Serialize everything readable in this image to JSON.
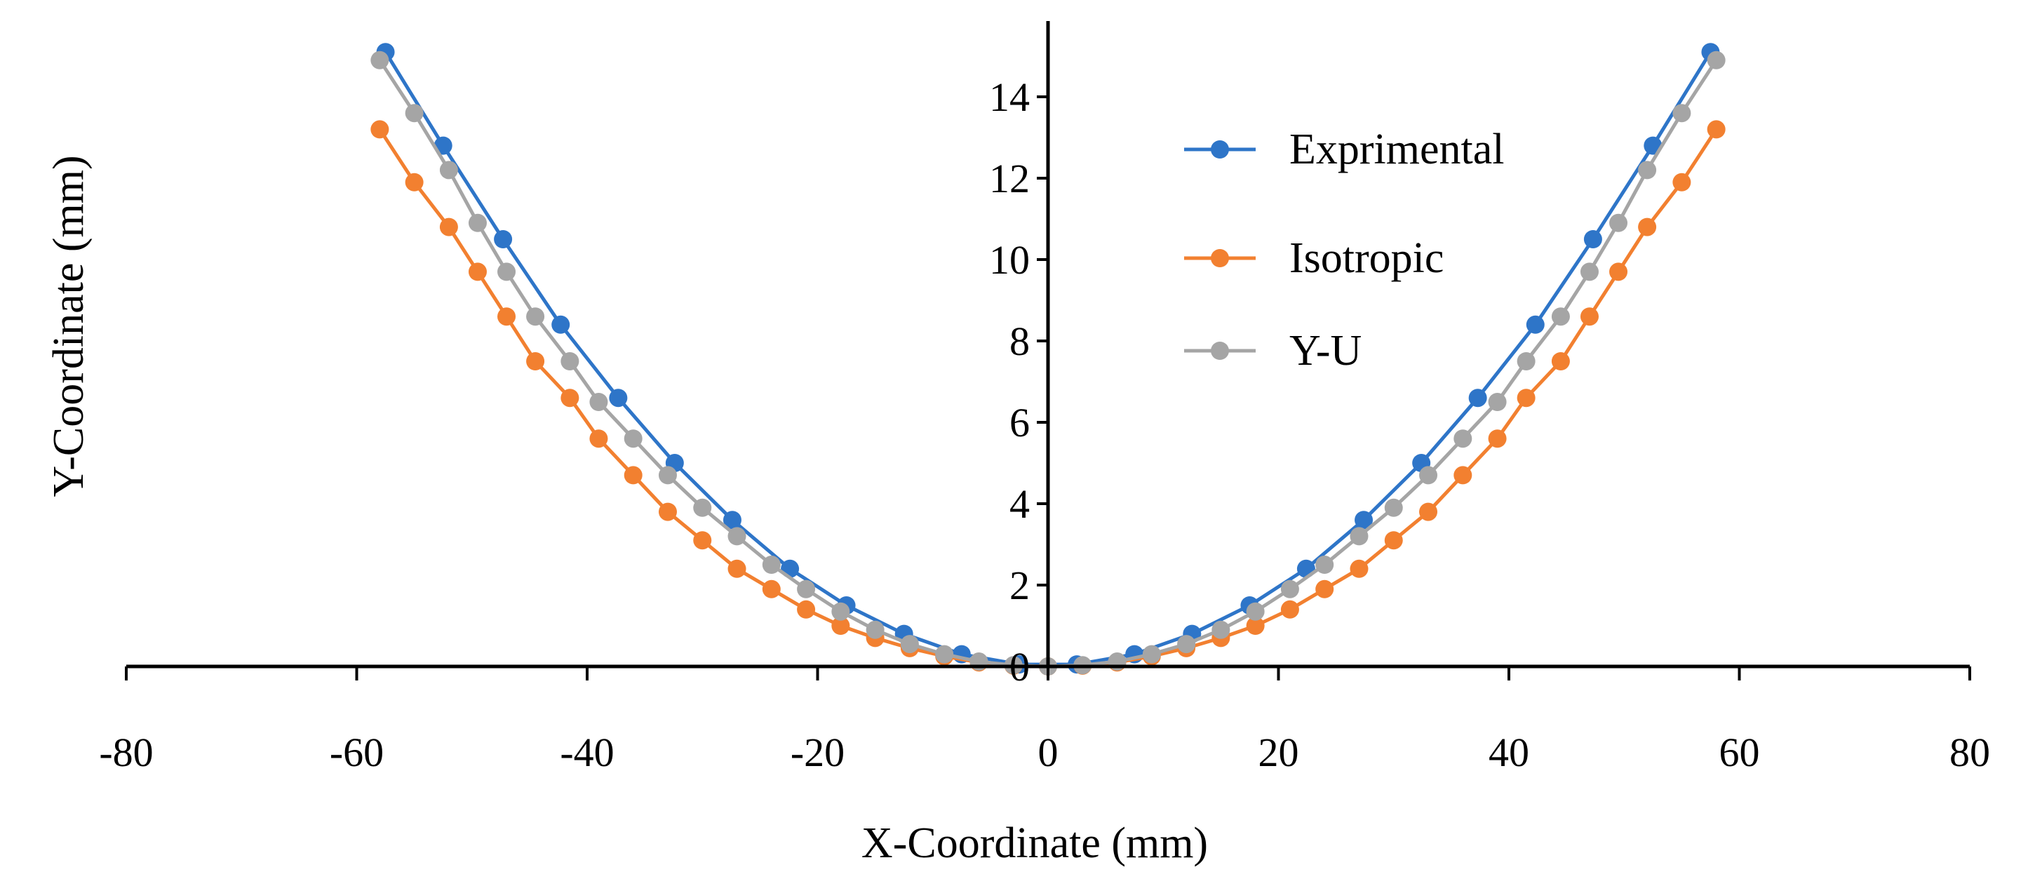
{
  "chart_data": {
    "type": "line",
    "title": "",
    "xlabel": "X-Coordinate (mm)",
    "ylabel": "Y-Coordinate (mm)",
    "xlim": [
      -80,
      80
    ],
    "ylim": [
      0,
      15.5
    ],
    "x_ticks": [
      {
        "value": -80,
        "label": "-80"
      },
      {
        "value": -60,
        "label": "-60"
      },
      {
        "value": -40,
        "label": "-40"
      },
      {
        "value": -20,
        "label": "-20"
      },
      {
        "value": 0,
        "label": "0"
      },
      {
        "value": 20,
        "label": "20"
      },
      {
        "value": 40,
        "label": "40"
      },
      {
        "value": 60,
        "label": "60"
      },
      {
        "value": 80,
        "label": "80"
      }
    ],
    "y_ticks": [
      {
        "value": 0,
        "label": "0"
      },
      {
        "value": 2,
        "label": "2"
      },
      {
        "value": 4,
        "label": "4"
      },
      {
        "value": 6,
        "label": "6"
      },
      {
        "value": 8,
        "label": "8"
      },
      {
        "value": 10,
        "label": "10"
      },
      {
        "value": 12,
        "label": "12"
      },
      {
        "value": 14,
        "label": "14"
      }
    ],
    "grid": false,
    "legend_position": "top-right",
    "series": [
      {
        "name": "Exprimental",
        "color": "#2E75C8",
        "x": [
          -57.5,
          -52.5,
          -47.3,
          -42.3,
          -37.3,
          -32.4,
          -27.4,
          -22.4,
          -17.5,
          -12.5,
          -7.5,
          -2.5,
          2.5,
          7.5,
          12.5,
          17.5,
          22.4,
          27.4,
          32.4,
          37.3,
          42.3,
          47.3,
          52.5,
          57.5
        ],
        "y": [
          15.1,
          12.8,
          10.5,
          8.4,
          6.6,
          5.0,
          3.6,
          2.4,
          1.5,
          0.8,
          0.3,
          0.05,
          0.05,
          0.3,
          0.8,
          1.5,
          2.4,
          3.6,
          5.0,
          6.6,
          8.4,
          10.5,
          12.8,
          15.1
        ]
      },
      {
        "name": "Isotropic",
        "color": "#F28030",
        "x": [
          -58,
          -55,
          -52,
          -49.5,
          -47,
          -44.5,
          -41.5,
          -39,
          -36,
          -33,
          -30,
          -27,
          -24,
          -21,
          -18,
          -15,
          -12,
          -9,
          -6,
          -3,
          0,
          3,
          6,
          9,
          12,
          15,
          18,
          21,
          24,
          27,
          30,
          33,
          36,
          39,
          41.5,
          44.5,
          47,
          49.5,
          52,
          55,
          58
        ],
        "y": [
          13.2,
          11.9,
          10.8,
          9.7,
          8.6,
          7.5,
          6.6,
          5.6,
          4.7,
          3.8,
          3.1,
          2.4,
          1.9,
          1.4,
          1.0,
          0.7,
          0.45,
          0.25,
          0.1,
          0.02,
          0.0,
          0.02,
          0.1,
          0.25,
          0.45,
          0.7,
          1.0,
          1.4,
          1.9,
          2.4,
          3.1,
          3.8,
          4.7,
          5.6,
          6.6,
          7.5,
          8.6,
          9.7,
          10.8,
          11.9,
          13.2
        ]
      },
      {
        "name": "Y-U",
        "color": "#A5A5A5",
        "x": [
          -58,
          -55,
          -52,
          -49.5,
          -47,
          -44.5,
          -41.5,
          -39,
          -36,
          -33,
          -30,
          -27,
          -24,
          -21,
          -18,
          -15,
          -12,
          -9,
          -6,
          -3,
          0,
          3,
          6,
          9,
          12,
          15,
          18,
          21,
          24,
          27,
          30,
          33,
          36,
          39,
          41.5,
          44.5,
          47,
          49.5,
          52,
          55,
          58
        ],
        "y": [
          14.9,
          13.6,
          12.2,
          10.9,
          9.7,
          8.6,
          7.5,
          6.5,
          5.6,
          4.7,
          3.9,
          3.2,
          2.5,
          1.9,
          1.35,
          0.9,
          0.55,
          0.3,
          0.12,
          0.03,
          0.0,
          0.03,
          0.12,
          0.3,
          0.55,
          0.9,
          1.35,
          1.9,
          2.5,
          3.2,
          3.9,
          4.7,
          5.6,
          6.5,
          7.5,
          8.6,
          9.7,
          10.9,
          12.2,
          13.6,
          14.9
        ]
      }
    ]
  }
}
